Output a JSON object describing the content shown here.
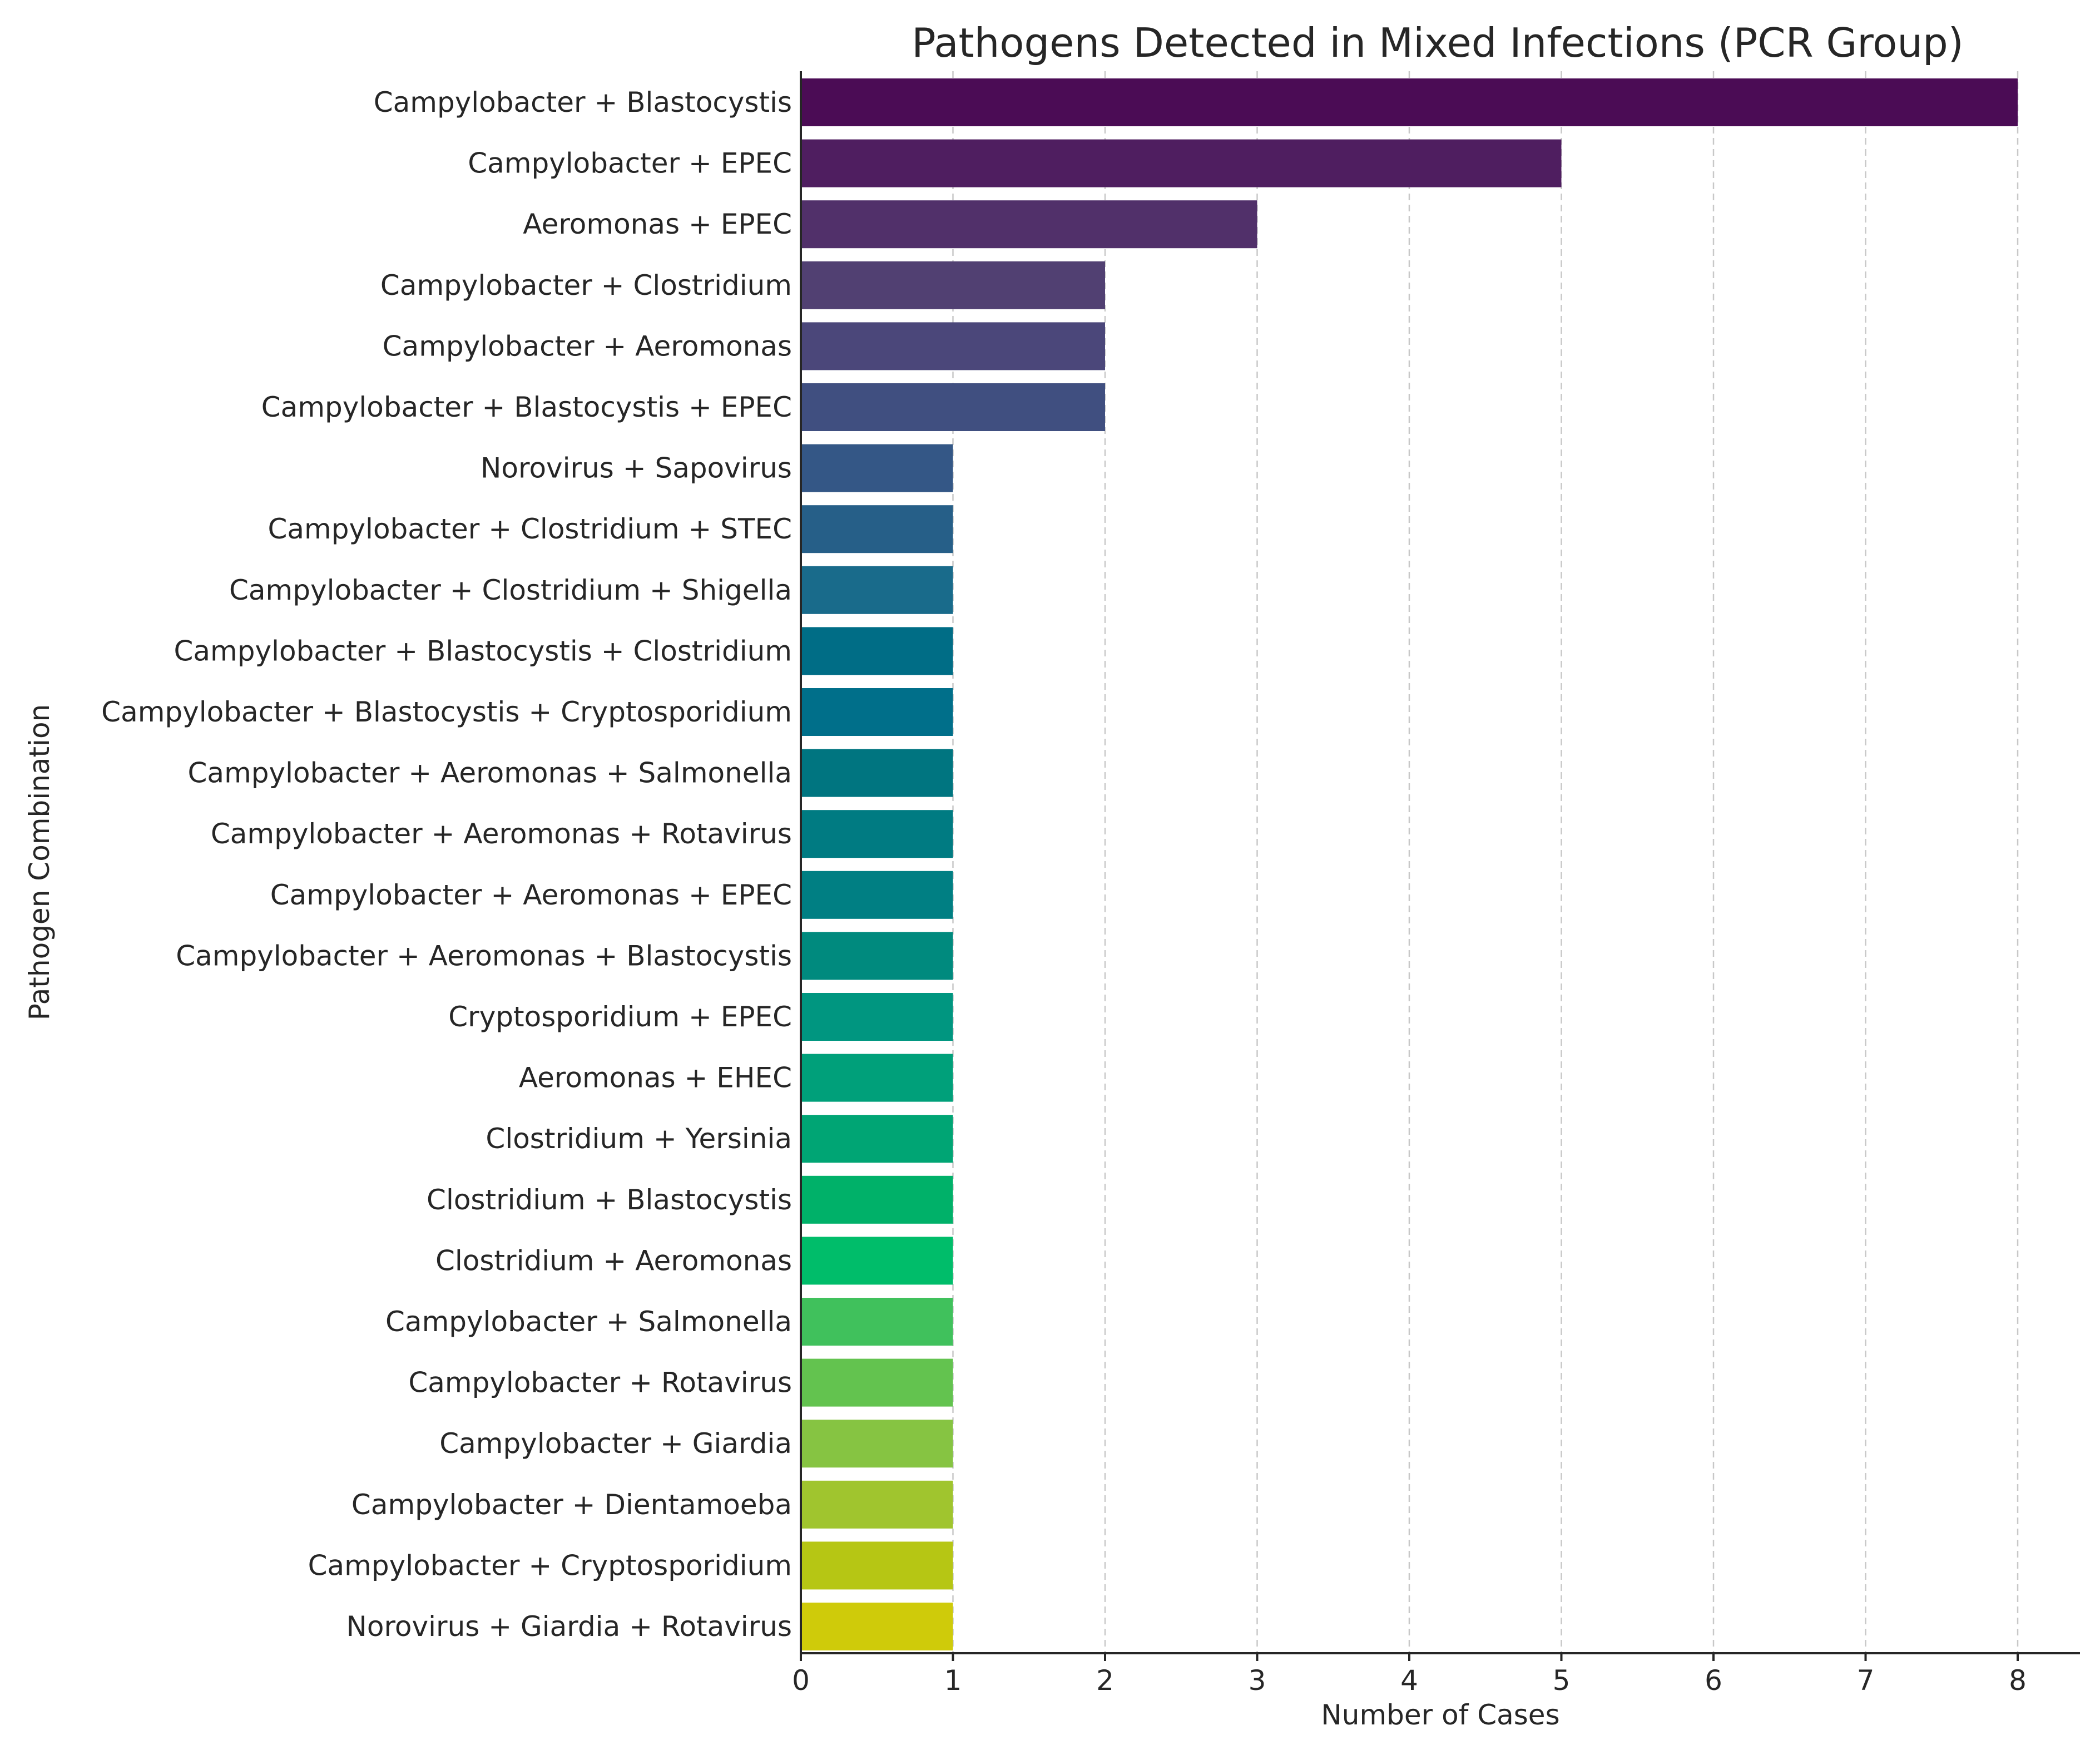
{
  "chart_data": {
    "type": "bar",
    "orientation": "horizontal",
    "title": "Pathogens Detected in Mixed Infections (PCR Group)",
    "xlabel": "Number of Cases",
    "ylabel": "Pathogen Combination",
    "xlim": [
      0,
      8.4
    ],
    "xticks": [
      0,
      1,
      2,
      3,
      4,
      5,
      6,
      7,
      8
    ],
    "grid": "x, dashed",
    "colormap": "viridis",
    "categories": [
      "Campylobacter + Blastocystis",
      "Campylobacter + EPEC",
      "Aeromonas + EPEC",
      "Campylobacter + Clostridium",
      "Campylobacter + Aeromonas",
      "Campylobacter + Blastocystis + EPEC",
      "Norovirus + Sapovirus",
      "Campylobacter + Clostridium + STEC",
      "Campylobacter + Clostridium + Shigella",
      "Campylobacter + Blastocystis + Clostridium",
      "Campylobacter + Blastocystis + Cryptosporidium",
      "Campylobacter + Aeromonas + Salmonella",
      "Campylobacter + Aeromonas + Rotavirus",
      "Campylobacter + Aeromonas + EPEC",
      "Campylobacter + Aeromonas + Blastocystis",
      "Cryptosporidium + EPEC",
      "Aeromonas + EHEC",
      "Clostridium + Yersinia",
      "Clostridium + Blastocystis",
      "Clostridium + Aeromonas",
      "Campylobacter + Salmonella",
      "Campylobacter + Rotavirus",
      "Campylobacter + Giardia",
      "Campylobacter + Dientamoeba",
      "Campylobacter + Cryptosporidium",
      "Norovirus + Giardia + Rotavirus"
    ],
    "values": [
      8,
      5,
      3,
      2,
      2,
      2,
      1,
      1,
      1,
      1,
      1,
      1,
      1,
      1,
      1,
      1,
      1,
      1,
      1,
      1,
      1,
      1,
      1,
      1,
      1,
      1
    ],
    "colors": [
      "#4b0c55",
      "#4f1e60",
      "#51306a",
      "#514072",
      "#4b477a",
      "#404f80",
      "#345786",
      "#265f88",
      "#196b8b",
      "#006d86",
      "#006f8a",
      "#007580",
      "#007b82",
      "#007f83",
      "#008a7e",
      "#009680",
      "#00a07a",
      "#00a574",
      "#00b169",
      "#00bd6a",
      "#40c15c",
      "#63c34f",
      "#86c442",
      "#a0c52e",
      "#b6c614",
      "#cfcb0a"
    ]
  }
}
